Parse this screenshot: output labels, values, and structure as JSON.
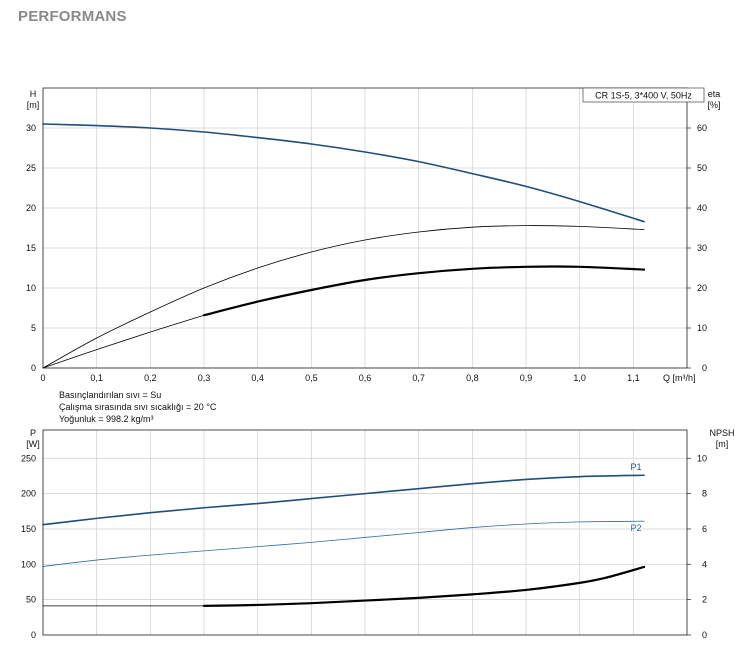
{
  "page": {
    "title": "PERFORMANS"
  },
  "chart_data": [
    {
      "type": "line",
      "model_label": "CR 1S-5, 3*400 V, 50Hz",
      "x_axis": {
        "label": "Q [m³/h]",
        "ticks": [
          "0",
          "0,1",
          "0,2",
          "0,3",
          "0,4",
          "0,5",
          "0,6",
          "0,7",
          "0,8",
          "0,9",
          "1,0",
          "1,1"
        ],
        "range": [
          0,
          1.2
        ]
      },
      "y_left": {
        "label_line1": "H",
        "label_line2": "[m]",
        "ticks": [
          "0",
          "5",
          "10",
          "15",
          "20",
          "25",
          "30"
        ],
        "range": [
          0,
          35
        ]
      },
      "y_right": {
        "label_line1": "eta",
        "label_line2": "[%]",
        "ticks": [
          "0",
          "10",
          "20",
          "30",
          "40",
          "50",
          "60"
        ],
        "range": [
          0,
          70
        ]
      },
      "grid": true,
      "series": [
        {
          "axis": "left",
          "color": "#1f4e79",
          "style": "solid",
          "x": [
            0,
            0.1,
            0.2,
            0.3,
            0.4,
            0.5,
            0.6,
            0.7,
            0.8,
            0.9,
            1.0,
            1.12
          ],
          "values": [
            30.5,
            30.3,
            30.0,
            29.5,
            28.8,
            28.0,
            27.0,
            25.8,
            24.3,
            22.7,
            20.8,
            18.3
          ]
        },
        {
          "axis": "right",
          "color": "#000000",
          "style": "thin",
          "x": [
            0,
            0.1,
            0.2,
            0.3,
            0.4,
            0.5,
            0.6,
            0.7,
            0.8,
            0.9,
            1.0,
            1.12
          ],
          "values": [
            0,
            7.5,
            14,
            20,
            25,
            29,
            32,
            34,
            35.2,
            35.6,
            35.4,
            34.6
          ]
        },
        {
          "axis": "right",
          "color": "#000000",
          "style": "thin",
          "x": [
            0,
            0.1,
            0.2,
            0.3
          ],
          "values": [
            0,
            4.6,
            9.0,
            13.2
          ]
        },
        {
          "axis": "right",
          "color": "#000000",
          "style": "bold",
          "x": [
            0.3,
            0.4,
            0.5,
            0.6,
            0.7,
            0.8,
            0.9,
            1.0,
            1.12
          ],
          "values": [
            13.2,
            16.6,
            19.5,
            22.0,
            23.7,
            24.8,
            25.3,
            25.3,
            24.6
          ]
        }
      ],
      "notes": [
        "Basınçlandırılan sıvı = Su",
        "Çalışma sırasında sıvı sıcaklığı = 20 °C",
        "Yoğunluk = 998.2 kg/m³"
      ]
    },
    {
      "type": "line",
      "x_axis": {
        "range": [
          0,
          1.2
        ],
        "ticks": [
          "0",
          "0,1",
          "0,2",
          "0,3",
          "0,4",
          "0,5",
          "0,6",
          "0,7",
          "0,8",
          "0,9",
          "1,0",
          "1,1"
        ]
      },
      "y_left": {
        "label_line1": "P",
        "label_line2": "[W]",
        "ticks": [
          "0",
          "50",
          "100",
          "150",
          "200",
          "250"
        ],
        "range": [
          0,
          290
        ]
      },
      "y_right": {
        "label_line1": "NPSH",
        "label_line2": "[m]",
        "ticks": [
          "0",
          "2",
          "4",
          "6",
          "8",
          "10"
        ],
        "range": [
          0,
          11.6
        ]
      },
      "grid": true,
      "series": [
        {
          "name": "P1",
          "axis": "left",
          "color": "#1f4e79",
          "style": "solid",
          "x": [
            0,
            0.1,
            0.2,
            0.3,
            0.4,
            0.5,
            0.6,
            0.7,
            0.8,
            0.9,
            1.0,
            1.12
          ],
          "values": [
            156,
            165,
            173,
            180,
            186,
            193,
            200,
            207,
            214,
            220,
            224,
            226
          ]
        },
        {
          "name": "P2",
          "axis": "left",
          "color": "#2e6da4",
          "style": "thin",
          "x": [
            0,
            0.1,
            0.2,
            0.3,
            0.4,
            0.5,
            0.6,
            0.7,
            0.8,
            0.9,
            1.0,
            1.12
          ],
          "values": [
            97,
            106,
            113,
            119,
            125,
            131,
            138,
            145,
            152,
            157,
            160,
            161
          ]
        },
        {
          "axis": "right",
          "color": "#000000",
          "style": "thin",
          "x": [
            0,
            0.3
          ],
          "values": [
            1.65,
            1.65
          ]
        },
        {
          "axis": "right",
          "color": "#000000",
          "style": "bold",
          "x": [
            0.3,
            0.4,
            0.5,
            0.6,
            0.7,
            0.8,
            0.9,
            1.0,
            1.05,
            1.12
          ],
          "values": [
            1.65,
            1.7,
            1.8,
            1.95,
            2.1,
            2.3,
            2.55,
            2.95,
            3.25,
            3.85
          ]
        }
      ]
    }
  ]
}
